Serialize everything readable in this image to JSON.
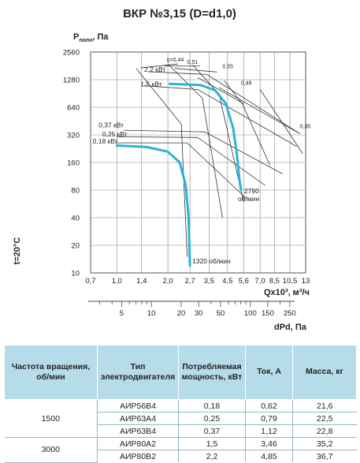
{
  "chart_data": {
    "type": "line",
    "title": "ВКР №3,15 (D=d1,0)",
    "ylabel": "Pполн, Па",
    "ylabel_main": "P",
    "ylabel_sub": "полн",
    "ylabel_tail": ", Па",
    "xlabel": "Qx10³, м³/ч",
    "x2label": "dPd, Па",
    "side_label": "t=20°C",
    "x_scale": "log",
    "y_scale": "log",
    "xlim": [
      0.7,
      13
    ],
    "ylim": [
      10,
      2560
    ],
    "x_ticks": [
      "0,7",
      "1,0",
      "1,4",
      "2,0",
      "2,7",
      "3,5",
      "4,5",
      "5,6",
      "7,0",
      "8,5",
      "10,5",
      "13"
    ],
    "y_ticks": [
      "2560",
      "1280",
      "640",
      "320",
      "160",
      "80",
      "40",
      "20",
      "10"
    ],
    "x2_ticks": [
      "5",
      "10",
      "20",
      "30",
      "50",
      "100",
      "150",
      "250"
    ],
    "grid": true,
    "series": [
      {
        "name": "1320 об/мин",
        "points": [
          [
            1.0,
            245
          ],
          [
            1.5,
            236
          ],
          [
            2.0,
            210
          ],
          [
            2.35,
            160
          ],
          [
            2.55,
            90
          ],
          [
            2.65,
            40
          ],
          [
            2.7,
            12
          ]
        ]
      },
      {
        "name": "2790 об/мин",
        "points": [
          [
            2.05,
            1150
          ],
          [
            3.1,
            1120
          ],
          [
            3.8,
            980
          ],
          [
            4.4,
            700
          ],
          [
            4.85,
            380
          ],
          [
            5.1,
            200
          ],
          [
            5.3,
            100
          ],
          [
            5.4,
            80
          ]
        ]
      }
    ],
    "power_labels": [
      "2,2 кВт",
      "1,5 кВт",
      "0,37 кВт",
      "0,25 кВт",
      "0,18 кВт"
    ],
    "efficiency_labels": [
      "η=0,44",
      "0,51",
      "0,55",
      "0,49",
      "0,35"
    ]
  },
  "table": {
    "headers": [
      "Частота вращения, об/мин",
      "Тип электродвигателя",
      "Потребляемая мощность, кВт",
      "Ток, А",
      "Масса, кг"
    ],
    "groups": [
      {
        "speed": "1500",
        "rows": [
          [
            "АИР56В4",
            "0,18",
            "0,62",
            "21,6"
          ],
          [
            "АИР63А4",
            "0,25",
            "0,79",
            "22,5"
          ],
          [
            "АИР63В4",
            "0,37",
            "1,12",
            "22,8"
          ]
        ]
      },
      {
        "speed": "3000",
        "rows": [
          [
            "АИР80А2",
            "1,5",
            "3,46",
            "35,2"
          ],
          [
            "АИР80В2",
            "2,2",
            "4,85",
            "36,7"
          ]
        ]
      }
    ]
  }
}
